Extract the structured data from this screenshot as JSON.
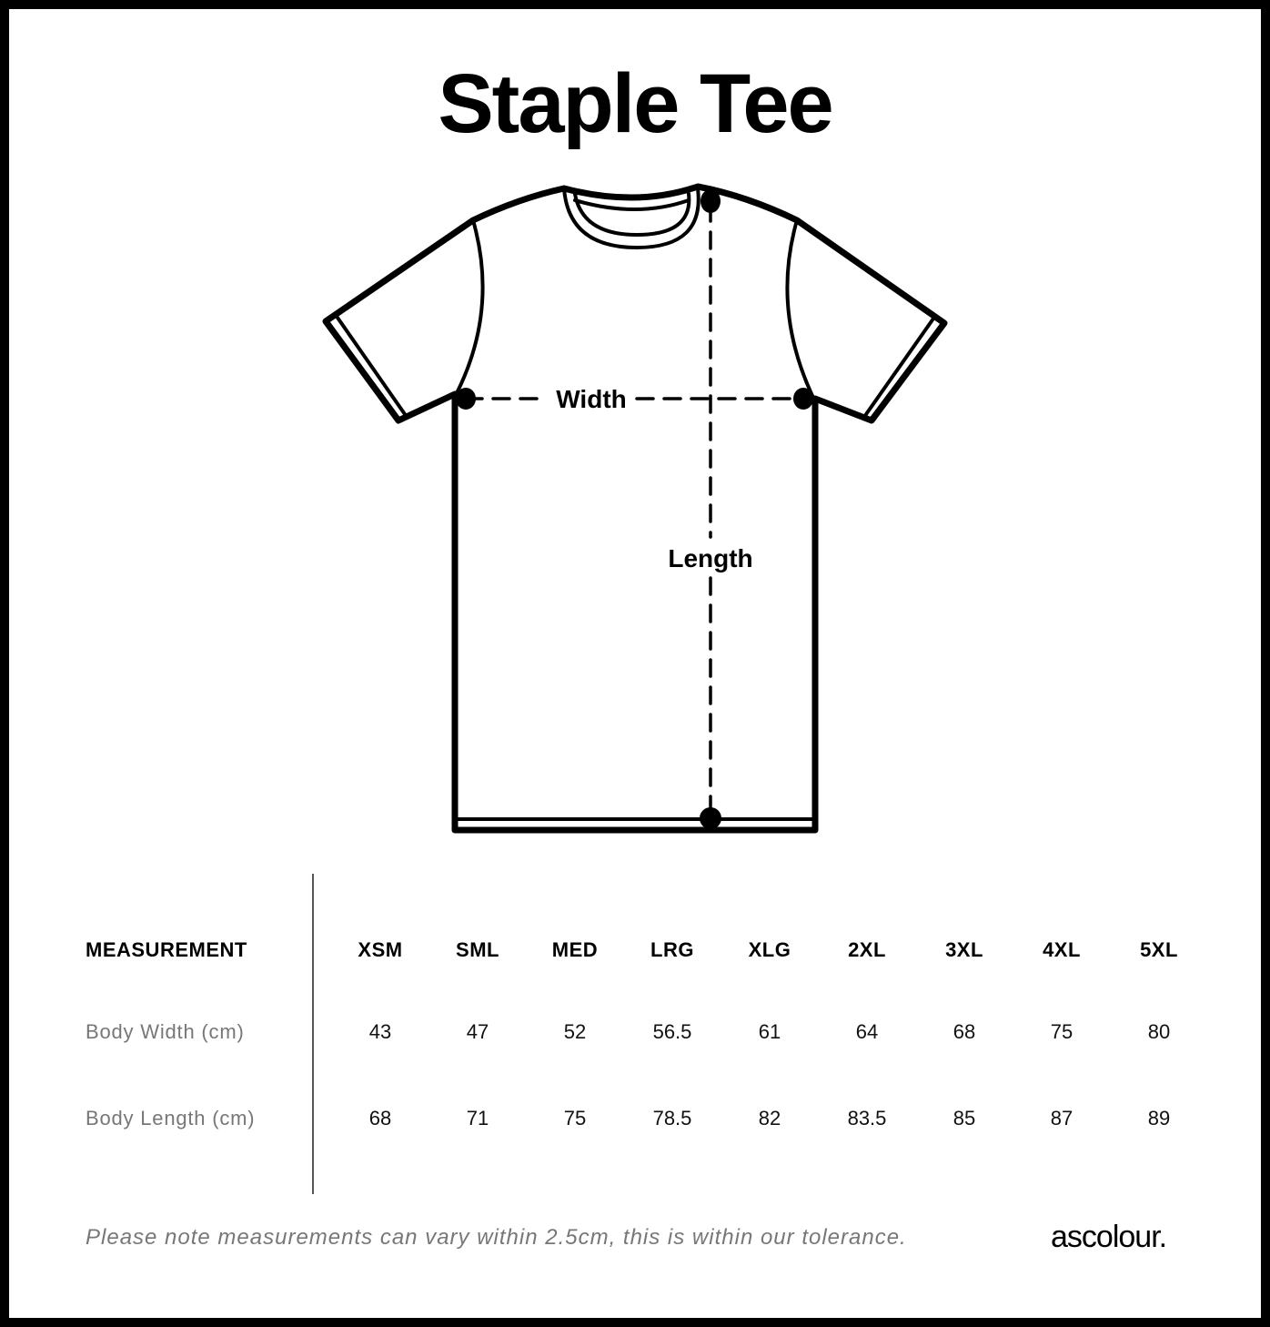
{
  "title": "Staple Tee",
  "diagram": {
    "width_label": "Width",
    "length_label": "Length"
  },
  "table": {
    "header_label": "MEASUREMENT",
    "sizes": [
      "XSM",
      "SML",
      "MED",
      "LRG",
      "XLG",
      "2XL",
      "3XL",
      "4XL",
      "5XL"
    ],
    "rows": [
      {
        "label": "Body Width (cm)",
        "values": [
          "43",
          "47",
          "52",
          "56.5",
          "61",
          "64",
          "68",
          "75",
          "80"
        ]
      },
      {
        "label": "Body Length (cm)",
        "values": [
          "68",
          "71",
          "75",
          "78.5",
          "82",
          "83.5",
          "85",
          "87",
          "89"
        ]
      }
    ]
  },
  "note": "Please note measurements can vary within 2.5cm, this is within our tolerance.",
  "logo": "ascolour."
}
